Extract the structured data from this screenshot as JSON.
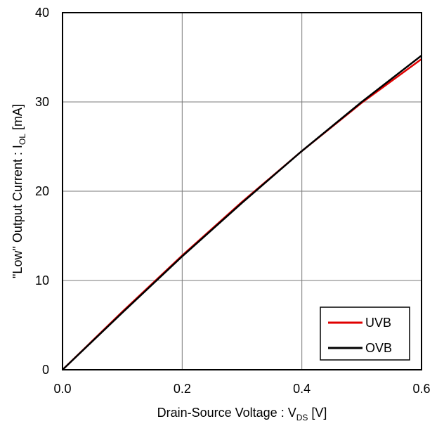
{
  "chart_data": {
    "type": "line",
    "xlabel": {
      "main": "Drain-Source Voltage : V",
      "sub": "DS",
      "unit": " [V]"
    },
    "ylabel": {
      "main": "\"Low\" Output Current : I",
      "sub": "OL",
      "unit": " [mA]"
    },
    "xlim": [
      0.0,
      0.6
    ],
    "ylim": [
      0,
      40
    ],
    "xticks": [
      "0.0",
      "0.2",
      "0.4",
      "0.6"
    ],
    "yticks": [
      "0",
      "10",
      "20",
      "30",
      "40"
    ],
    "grid": true,
    "legend_position": "bottom-right",
    "series": [
      {
        "name": "UVB",
        "color": "#e00000",
        "x": [
          0.0,
          0.1,
          0.2,
          0.3,
          0.4,
          0.5,
          0.6
        ],
        "y": [
          0.0,
          6.5,
          12.8,
          18.8,
          24.5,
          29.9,
          34.8
        ]
      },
      {
        "name": "OVB",
        "color": "#000000",
        "x": [
          0.0,
          0.1,
          0.2,
          0.3,
          0.4,
          0.5,
          0.6
        ],
        "y": [
          0.0,
          6.4,
          12.7,
          18.7,
          24.5,
          30.0,
          35.2
        ]
      }
    ]
  }
}
